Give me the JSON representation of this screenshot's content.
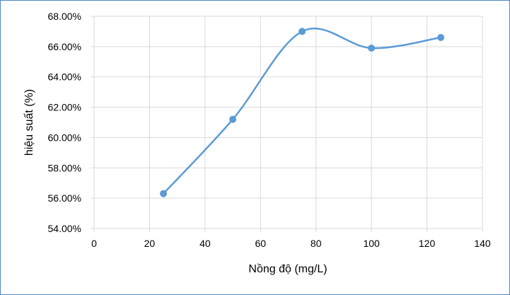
{
  "chart_data": {
    "type": "scatter",
    "style": "smoothed line with markers",
    "xlabel": "Nồng độ (mg/L)",
    "ylabel": "hiệu suất (%)",
    "xlim": [
      0,
      140
    ],
    "ylim": [
      0.54,
      0.68
    ],
    "x_ticks": [
      "0",
      "20",
      "40",
      "60",
      "80",
      "100",
      "120",
      "140"
    ],
    "y_ticks": [
      "54.00%",
      "56.00%",
      "58.00%",
      "60.00%",
      "62.00%",
      "64.00%",
      "66.00%",
      "68.00%"
    ],
    "x_tick_values": [
      0,
      20,
      40,
      60,
      80,
      100,
      120,
      140
    ],
    "y_tick_values": [
      0.54,
      0.56,
      0.58,
      0.6,
      0.62,
      0.64,
      0.66,
      0.68
    ],
    "grid": true,
    "legend": "none",
    "series": [
      {
        "x": [
          25,
          50,
          75,
          100,
          125
        ],
        "y": [
          0.563,
          0.612,
          0.67,
          0.659,
          0.666
        ]
      }
    ],
    "colors": {
      "series": "#5b9bd5",
      "grid": "#d9d9d9",
      "border": "#4f86c6"
    }
  }
}
